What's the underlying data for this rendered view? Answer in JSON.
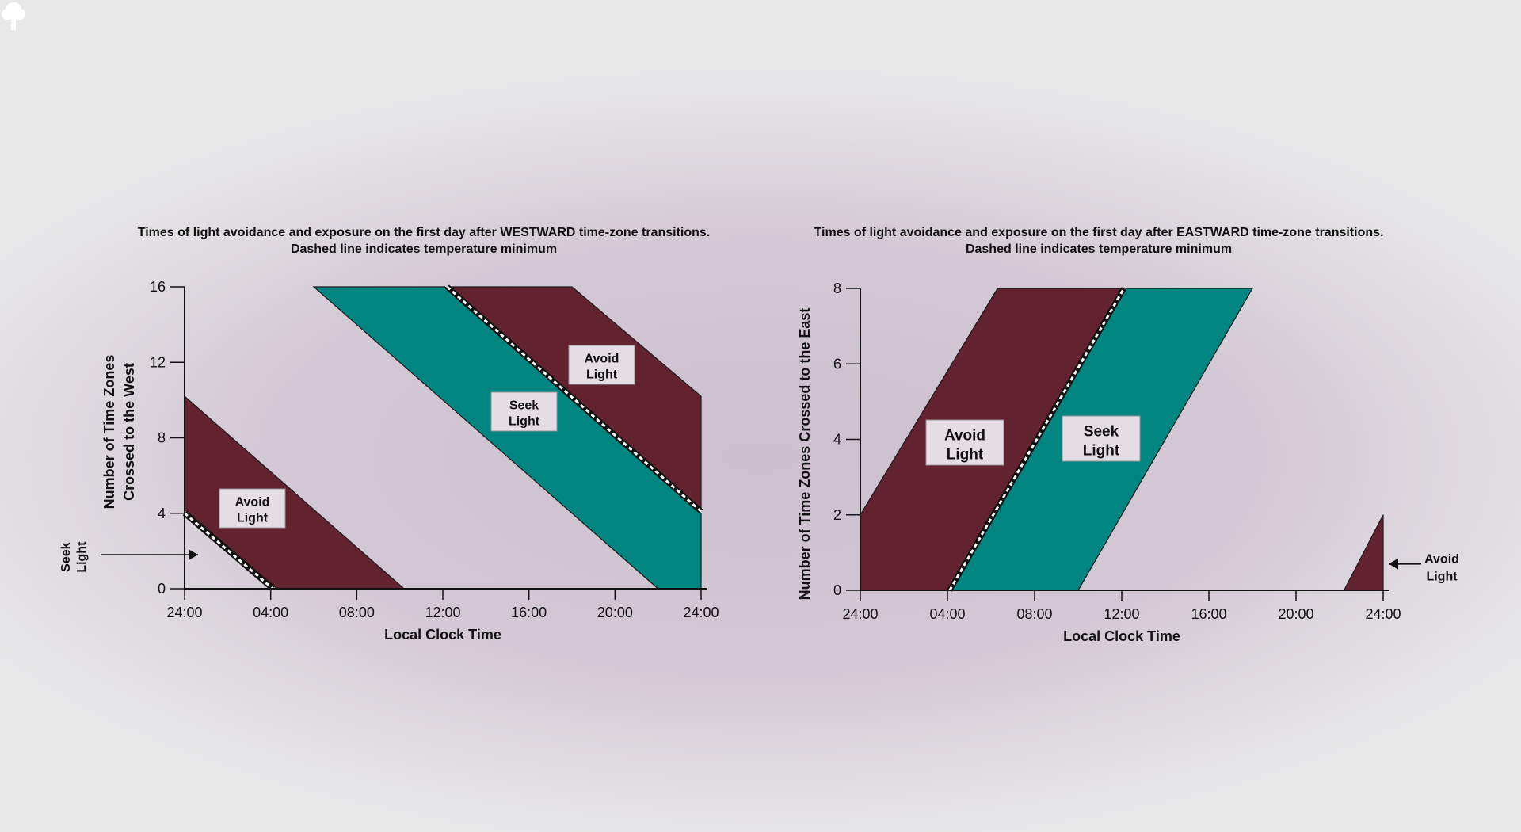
{
  "colors": {
    "avoid": "#62222f",
    "seek": "#008580",
    "label_box": "#e4dde4",
    "axis": "#111111"
  },
  "brand_icon": "tree-icon",
  "chart_data": [
    {
      "type": "area",
      "title": "Times of light avoidance and exposure on the first day after WESTWARD time-zone transitions.",
      "subtitle": "Dashed line indicates temperature minimum",
      "xlabel": "Local Clock Time",
      "ylabel_lines": [
        "Number of Time Zones",
        "Crossed to the West"
      ],
      "xlim": [
        0,
        24
      ],
      "ylim": [
        0,
        16
      ],
      "x_ticks": [
        0,
        4,
        8,
        12,
        16,
        20,
        24
      ],
      "x_tick_labels": [
        "24:00",
        "04:00",
        "08:00",
        "12:00",
        "16:00",
        "20:00",
        "24:00"
      ],
      "y_ticks": [
        0,
        4,
        8,
        12,
        16
      ],
      "y_tick_labels": [
        "0",
        "4",
        "8",
        "12",
        "16"
      ],
      "grid": false,
      "regions": [
        {
          "kind": "avoid",
          "label": "Avoid Light",
          "points": [
            [
              0,
              10.2
            ],
            [
              10.2,
              0
            ],
            [
              4.3,
              0
            ],
            [
              0,
              4.2
            ]
          ]
        },
        {
          "kind": "seek",
          "label": "Seek Light",
          "points": [
            [
              6,
              16
            ],
            [
              12.1,
              16
            ],
            [
              24,
              4
            ],
            [
              24,
              0
            ],
            [
              22,
              0
            ]
          ]
        },
        {
          "kind": "avoid",
          "label": "Avoid Light",
          "points": [
            [
              12.3,
              16
            ],
            [
              18,
              16
            ],
            [
              24,
              10.2
            ],
            [
              24,
              4.2
            ]
          ]
        }
      ],
      "temperature_minimum_lines": [
        [
          [
            0,
            4
          ],
          [
            4.1,
            0
          ]
        ],
        [
          [
            12.2,
            16
          ],
          [
            24,
            4.1
          ]
        ]
      ],
      "annotations": [
        {
          "text_lines": [
            "Seek",
            "Light"
          ],
          "arrow": "right",
          "y": 1.8
        }
      ]
    },
    {
      "type": "area",
      "title": "Times of light avoidance and exposure on the first day after EASTWARD time-zone transitions.",
      "subtitle": "Dashed line indicates temperature minimum",
      "xlabel": "Local Clock Time",
      "ylabel_lines": [
        "Number of Time Zones Crossed to the East"
      ],
      "xlim": [
        0,
        24
      ],
      "ylim": [
        0,
        8
      ],
      "x_ticks": [
        0,
        4,
        8,
        12,
        16,
        20,
        24
      ],
      "x_tick_labels": [
        "24:00",
        "04:00",
        "08:00",
        "12:00",
        "16:00",
        "20:00",
        "24:00"
      ],
      "y_ticks": [
        0,
        2,
        4,
        6,
        8
      ],
      "y_tick_labels": [
        "0",
        "2",
        "4",
        "6",
        "8"
      ],
      "grid": false,
      "regions": [
        {
          "kind": "avoid",
          "label": "Avoid Light",
          "points": [
            [
              0,
              0
            ],
            [
              0,
              2
            ],
            [
              6.3,
              8
            ],
            [
              12,
              8
            ],
            [
              4,
              0
            ]
          ]
        },
        {
          "kind": "seek",
          "label": "Seek Light",
          "points": [
            [
              4.2,
              0
            ],
            [
              12.2,
              8
            ],
            [
              18,
              8
            ],
            [
              10,
              0
            ]
          ]
        },
        {
          "kind": "avoid",
          "label": "",
          "points": [
            [
              22.2,
              0
            ],
            [
              24,
              2
            ],
            [
              24,
              0
            ]
          ]
        }
      ],
      "temperature_minimum_lines": [
        [
          [
            4.1,
            0
          ],
          [
            12.1,
            8
          ]
        ]
      ],
      "annotations": [
        {
          "text_lines": [
            "Avoid",
            "Light"
          ],
          "arrow": "left",
          "y": 0.7
        }
      ]
    }
  ]
}
